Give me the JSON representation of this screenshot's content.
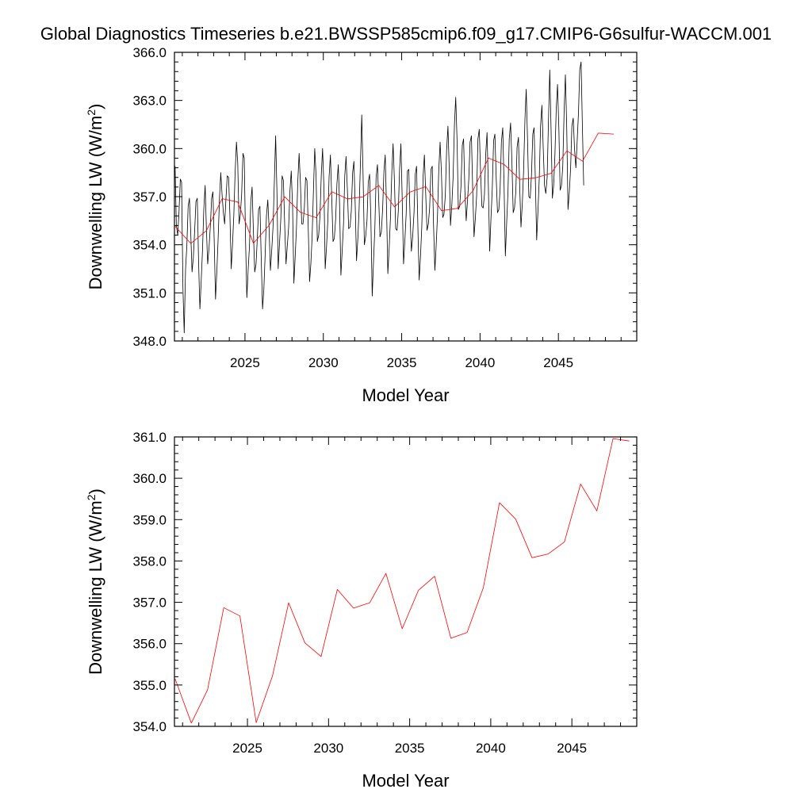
{
  "title": "Global Diagnostics Timeseries b.e21.BWSSP585cmip6.f09_g17.CMIP6-G6sulfur-WACCM.001",
  "chart_data": [
    {
      "type": "line",
      "xlabel": "Model Year",
      "ylabel": "Downwelling LW (W/m",
      "ylabel_sup": "2",
      "ylabel_close": ")",
      "xlim": [
        2020.5,
        2050
      ],
      "ylim": [
        348.0,
        366.0
      ],
      "xticks": [
        2025,
        2030,
        2035,
        2040,
        2045
      ],
      "yticks": [
        "348.0",
        "351.0",
        "354.0",
        "357.0",
        "360.0",
        "363.0",
        "366.0"
      ],
      "grid": false,
      "series": [
        {
          "color": "#000000",
          "start": 2020.54,
          "step": 0.0833,
          "values": [
            358.9,
            355.2,
            354.6,
            356.0,
            358.1,
            357.9,
            351.3,
            348.5,
            352.5,
            353.9,
            356.4,
            356.9,
            354.8,
            352.3,
            353.2,
            354.9,
            356.7,
            356.9,
            353.0,
            350.0,
            351.7,
            353.7,
            356.2,
            357.7,
            355.0,
            352.8,
            353.8,
            355.1,
            356.9,
            357.3,
            354.1,
            350.6,
            352.4,
            354.4,
            356.9,
            358.5,
            357.1,
            356.0,
            355.3,
            356.9,
            358.3,
            358.2,
            355.9,
            352.5,
            354.0,
            355.9,
            358.5,
            360.4,
            359.1,
            355.3,
            355.9,
            357.1,
            359.7,
            359.4,
            354.2,
            350.7,
            352.5,
            353.9,
            356.7,
            357.6,
            354.8,
            352.3,
            352.8,
            354.4,
            356.2,
            356.4,
            353.2,
            350.0,
            351.2,
            353.4,
            355.8,
            356.8,
            355.1,
            352.4,
            353.6,
            355.1,
            357.8,
            360.8,
            357.4,
            352.5,
            354.1,
            355.6,
            358.3,
            358.0,
            355.1,
            352.8,
            354.0,
            355.1,
            357.4,
            358.6,
            356.3,
            351.6,
            353.2,
            355.1,
            357.9,
            359.7,
            357.9,
            355.3,
            355.3,
            356.3,
            358.2,
            358.0,
            355.1,
            351.7,
            352.8,
            354.5,
            357.4,
            360.0,
            358.3,
            354.2,
            354.6,
            355.8,
            358.4,
            360.0,
            357.6,
            352.5,
            353.9,
            355.5,
            358.2,
            359.6,
            357.0,
            354.2,
            354.4,
            355.6,
            357.8,
            359.0,
            356.6,
            352.1,
            353.6,
            355.3,
            358.3,
            359.5,
            357.4,
            355.0,
            355.1,
            356.1,
            358.5,
            359.2,
            356.4,
            353.0,
            354.4,
            356.3,
            359.2,
            362.1,
            358.5,
            354.0,
            354.5,
            355.5,
            357.9,
            358.4,
            355.6,
            350.8,
            352.9,
            355.0,
            358.2,
            359.0,
            356.8,
            354.5,
            354.8,
            356.2,
            358.6,
            359.6,
            356.2,
            352.2,
            353.8,
            355.7,
            358.5,
            360.3,
            358.0,
            355.0,
            354.9,
            356.1,
            358.7,
            360.3,
            356.9,
            352.8,
            354.2,
            355.9,
            358.6,
            358.7,
            355.8,
            353.6,
            354.5,
            356.0,
            358.4,
            358.9,
            355.1,
            351.8,
            353.3,
            355.1,
            358.3,
            359.6,
            357.1,
            354.9,
            355.3,
            356.3,
            358.7,
            358.9,
            355.3,
            352.4,
            353.9,
            355.8,
            358.6,
            360.4,
            358.6,
            355.7,
            355.9,
            357.1,
            359.9,
            361.4,
            358.8,
            355.2,
            356.5,
            358.2,
            361.5,
            363.2,
            360.5,
            356.2,
            356.4,
            357.6,
            360.2,
            360.6,
            357.3,
            355.5,
            356.7,
            358.1,
            360.4,
            360.8,
            357.5,
            354.5,
            355.6,
            357.1,
            360.6,
            361.2,
            358.6,
            356.4,
            356.3,
            357.1,
            359.7,
            361.0,
            357.6,
            353.6,
            355.7,
            357.5,
            360.5,
            360.9,
            358.1,
            356.0,
            356.2,
            357.5,
            360.4,
            361.3,
            357.9,
            353.3,
            355.3,
            357.3,
            360.6,
            361.6,
            359.3,
            356.0,
            356.3,
            357.3,
            360.1,
            360.7,
            357.6,
            355.1,
            356.6,
            358.6,
            361.8,
            363.7,
            360.5,
            357.0,
            356.9,
            358.3,
            360.9,
            361.3,
            357.9,
            354.3,
            356.1,
            358.2,
            361.4,
            362.7,
            360.1,
            357.7,
            357.2,
            358.2,
            361.6,
            364.9,
            361.3,
            356.9,
            357.7,
            359.6,
            362.5,
            364.0,
            361.2,
            357.4,
            357.7,
            358.9,
            362.3,
            364.6,
            361.3,
            356.2,
            357.3,
            358.8,
            361.4,
            361.9,
            360.0,
            358.8,
            360.4,
            362.2,
            364.9,
            365.4,
            361.5,
            357.7
          ]
        },
        {
          "color": "#ff0000",
          "x": [
            2020.54,
            2021.54,
            2022.54,
            2023.54,
            2024.54,
            2025.54,
            2026.54,
            2027.54,
            2028.54,
            2029.54,
            2030.54,
            2031.54,
            2032.54,
            2033.54,
            2034.54,
            2035.54,
            2036.54,
            2037.54,
            2038.54,
            2039.54,
            2040.54,
            2041.54,
            2042.54,
            2043.54,
            2044.54,
            2045.54,
            2046.54,
            2047.54,
            2048.54
          ],
          "values": [
            355.15,
            354.08,
            354.88,
            356.87,
            356.67,
            354.09,
            355.22,
            356.99,
            356.02,
            355.69,
            357.31,
            356.86,
            356.99,
            357.7,
            356.36,
            357.29,
            357.63,
            356.13,
            356.27,
            357.35,
            359.41,
            359.01,
            358.08,
            358.17,
            358.46,
            359.86,
            359.21,
            360.96,
            360.9
          ]
        }
      ]
    },
    {
      "type": "line",
      "xlabel": "Model Year",
      "ylabel": "Downwelling LW (W/m",
      "ylabel_sup": "2",
      "ylabel_close": ")",
      "xlim": [
        2020.5,
        2049
      ],
      "ylim": [
        354.0,
        361.0
      ],
      "xticks": [
        2025,
        2030,
        2035,
        2040,
        2045
      ],
      "yticks": [
        "354.0",
        "355.0",
        "356.0",
        "357.0",
        "358.0",
        "359.0",
        "360.0",
        "361.0"
      ],
      "grid": false,
      "series": [
        {
          "color": "#ff0000",
          "x": [
            2020.54,
            2021.54,
            2022.54,
            2023.54,
            2024.54,
            2025.54,
            2026.54,
            2027.54,
            2028.54,
            2029.54,
            2030.54,
            2031.54,
            2032.54,
            2033.54,
            2034.54,
            2035.54,
            2036.54,
            2037.54,
            2038.54,
            2039.54,
            2040.54,
            2041.54,
            2042.54,
            2043.54,
            2044.54,
            2045.54,
            2046.54,
            2047.54,
            2048.54
          ],
          "values": [
            355.15,
            354.08,
            354.88,
            356.87,
            356.67,
            354.09,
            355.22,
            356.99,
            356.02,
            355.69,
            357.31,
            356.86,
            356.99,
            357.7,
            356.36,
            357.29,
            357.63,
            356.13,
            356.27,
            357.35,
            359.41,
            359.01,
            358.08,
            358.17,
            358.46,
            359.86,
            359.21,
            360.96,
            360.9
          ]
        }
      ]
    }
  ]
}
